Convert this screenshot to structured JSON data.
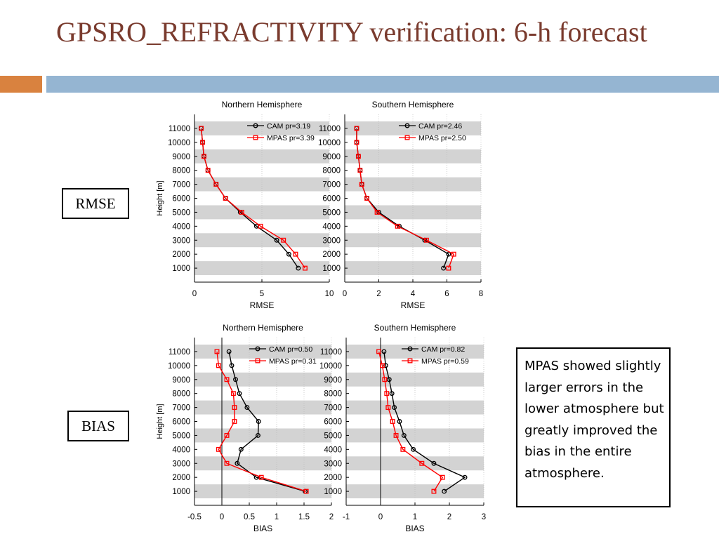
{
  "slide": {
    "title": "GPSRO_REFRACTIVITY verification: 6-h forecast",
    "rmse_label": "RMSE",
    "bias_label": "BIAS",
    "note": "MPAS showed slightly larger errors in the lower atmosphere but greatly improved the bias in the entire atmosphere.",
    "colors": {
      "title": "#7a3b2e",
      "accent_orange": "#d9823f",
      "accent_blue": "#95b5d2"
    }
  },
  "chart_data": [
    {
      "type": "line",
      "title": "Northern Hemisphere",
      "xlabel": "RMSE",
      "ylabel": "Height [m]",
      "xlim": [
        0,
        10
      ],
      "xticks": [
        0,
        5,
        10
      ],
      "ylim": [
        0,
        12000
      ],
      "yticks": [
        1000,
        2000,
        3000,
        4000,
        5000,
        6000,
        7000,
        8000,
        9000,
        10000,
        11000
      ],
      "legend": "top-right",
      "zero_line": false,
      "series": [
        {
          "name": "CAM pr=3.19",
          "color": "#000000",
          "marker": "circle",
          "x": [
            7.7,
            7.0,
            6.1,
            4.6,
            3.4,
            2.3,
            1.6,
            1.0,
            0.7,
            0.6,
            0.5
          ],
          "y": [
            1000,
            2000,
            3000,
            4000,
            5000,
            6000,
            7000,
            8000,
            9000,
            10000,
            11000
          ]
        },
        {
          "name": "MPAS pr=3.39",
          "color": "#ff0000",
          "marker": "square",
          "x": [
            8.2,
            7.5,
            6.6,
            4.9,
            3.5,
            2.3,
            1.6,
            1.0,
            0.7,
            0.6,
            0.5
          ],
          "y": [
            1000,
            2000,
            3000,
            4000,
            5000,
            6000,
            7000,
            8000,
            9000,
            10000,
            11000
          ]
        }
      ]
    },
    {
      "type": "line",
      "title": "Southern Hemisphere",
      "xlabel": "RMSE",
      "ylabel": "",
      "xlim": [
        0,
        8
      ],
      "xticks": [
        0,
        2,
        4,
        6,
        8
      ],
      "ylim": [
        0,
        12000
      ],
      "yticks": [
        1000,
        2000,
        3000,
        4000,
        5000,
        6000,
        7000,
        8000,
        9000,
        10000,
        11000
      ],
      "legend": "top-right",
      "zero_line": false,
      "series": [
        {
          "name": "CAM pr=2.46",
          "color": "#000000",
          "marker": "circle",
          "x": [
            5.8,
            6.1,
            4.7,
            3.2,
            2.0,
            1.3,
            1.0,
            0.9,
            0.8,
            0.7,
            0.7
          ],
          "y": [
            1000,
            2000,
            3000,
            4000,
            5000,
            6000,
            7000,
            8000,
            9000,
            10000,
            11000
          ]
        },
        {
          "name": "MPAS pr=2.50",
          "color": "#ff0000",
          "marker": "square",
          "x": [
            6.1,
            6.4,
            4.8,
            3.1,
            1.9,
            1.3,
            1.0,
            0.9,
            0.8,
            0.7,
            0.7
          ],
          "y": [
            1000,
            2000,
            3000,
            4000,
            5000,
            6000,
            7000,
            8000,
            9000,
            10000,
            11000
          ]
        }
      ]
    },
    {
      "type": "line",
      "title": "Northern Hemisphere",
      "xlabel": "BIAS",
      "ylabel": "Height [m]",
      "xlim": [
        -0.5,
        2
      ],
      "xticks": [
        -0.5,
        0,
        0.5,
        1,
        1.5,
        2
      ],
      "ylim": [
        0,
        12000
      ],
      "yticks": [
        1000,
        2000,
        3000,
        4000,
        5000,
        6000,
        7000,
        8000,
        9000,
        10000,
        11000
      ],
      "legend": "top-right",
      "zero_line": true,
      "series": [
        {
          "name": "CAM pr=0.50",
          "color": "#000000",
          "marker": "circle",
          "x": [
            1.52,
            0.63,
            0.28,
            0.35,
            0.66,
            0.67,
            0.46,
            0.32,
            0.25,
            0.18,
            0.13
          ],
          "y": [
            1000,
            2000,
            3000,
            4000,
            5000,
            6000,
            7000,
            8000,
            9000,
            10000,
            11000
          ]
        },
        {
          "name": "MPAS pr=0.31",
          "color": "#ff0000",
          "marker": "square",
          "x": [
            1.54,
            0.72,
            0.09,
            -0.06,
            0.09,
            0.23,
            0.23,
            0.21,
            0.09,
            -0.06,
            -0.09
          ],
          "y": [
            1000,
            2000,
            3000,
            4000,
            5000,
            6000,
            7000,
            8000,
            9000,
            10000,
            11000
          ]
        }
      ]
    },
    {
      "type": "line",
      "title": "Southern Hemisphere",
      "xlabel": "BIAS",
      "ylabel": "",
      "xlim": [
        -1,
        3
      ],
      "xticks": [
        -1,
        0,
        1,
        2,
        3
      ],
      "ylim": [
        0,
        12000
      ],
      "yticks": [
        1000,
        2000,
        3000,
        4000,
        5000,
        6000,
        7000,
        8000,
        9000,
        10000,
        11000
      ],
      "legend": "top-right",
      "zero_line": true,
      "series": [
        {
          "name": "CAM pr=0.82",
          "color": "#000000",
          "marker": "circle",
          "x": [
            1.85,
            2.45,
            1.55,
            0.95,
            0.68,
            0.55,
            0.4,
            0.33,
            0.25,
            0.15,
            0.1
          ],
          "y": [
            1000,
            2000,
            3000,
            4000,
            5000,
            6000,
            7000,
            8000,
            9000,
            10000,
            11000
          ]
        },
        {
          "name": "MPAS pr=0.59",
          "color": "#ff0000",
          "marker": "square",
          "x": [
            1.55,
            1.8,
            1.2,
            0.65,
            0.45,
            0.35,
            0.22,
            0.18,
            0.12,
            0.05,
            -0.05
          ],
          "y": [
            1000,
            2000,
            3000,
            4000,
            5000,
            6000,
            7000,
            8000,
            9000,
            10000,
            11000
          ]
        }
      ]
    }
  ]
}
